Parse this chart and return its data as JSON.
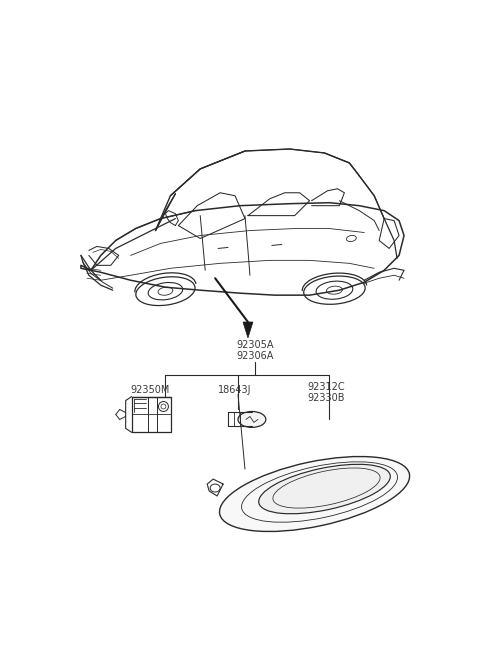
{
  "background_color": "#ffffff",
  "line_color": "#2a2a2a",
  "text_color": "#3a3a3a",
  "labels": {
    "main_top": [
      "92305A",
      "92306A"
    ],
    "left_part": "92350M",
    "center_part": "18643J",
    "right_part_1": "92312C",
    "right_part_2": "92330B"
  },
  "figsize": [
    4.8,
    6.45
  ],
  "dpi": 100,
  "font_size": 7.0
}
